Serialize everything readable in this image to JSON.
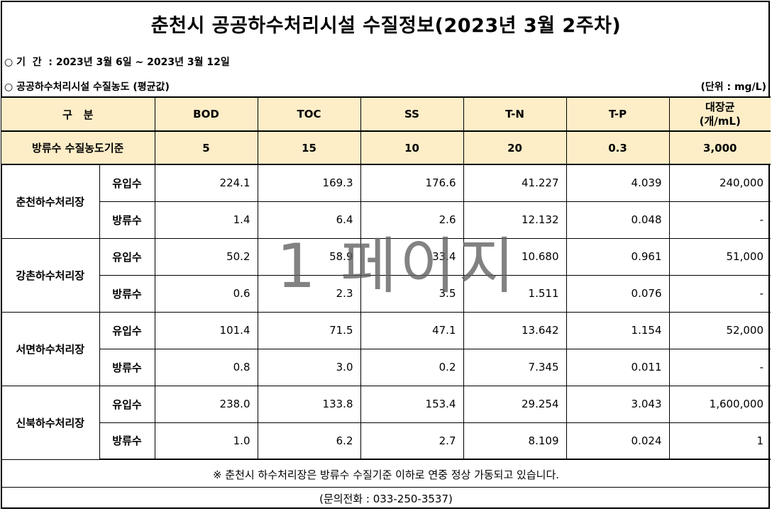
{
  "title": "춘천시 공공하수처리시설 수질정보(2023년 3월 2주차)",
  "period": {
    "bullet": "○",
    "label": "기  간  :",
    "value": "2023년 3월 6일 ~ 2023년 3월 12일"
  },
  "section": {
    "bullet": "○",
    "label": "공공하수처리시설 수질농도 (평균값)",
    "unit": "(단위 : mg/L)"
  },
  "table": {
    "header": {
      "division": "구   분",
      "columns": [
        "BOD",
        "TOC",
        "SS",
        "T-N",
        "T-P"
      ],
      "coliform_line1": "대장균",
      "coliform_line2": "(개/mL)"
    },
    "standard": {
      "label": "방류수 수질농도기준",
      "values": [
        "5",
        "15",
        "10",
        "20",
        "0.3",
        "3,000"
      ]
    },
    "plants": [
      {
        "name": "춘천하수처리장",
        "rows": [
          {
            "kind": "유입수",
            "values": [
              "224.1",
              "169.3",
              "176.6",
              "41.227",
              "4.039",
              "240,000"
            ]
          },
          {
            "kind": "방류수",
            "values": [
              "1.4",
              "6.4",
              "2.6",
              "12.132",
              "0.048",
              "-"
            ]
          }
        ]
      },
      {
        "name": "강촌하수처리장",
        "rows": [
          {
            "kind": "유입수",
            "values": [
              "50.2",
              "58.9",
              "33.4",
              "10.680",
              "0.961",
              "51,000"
            ]
          },
          {
            "kind": "방류수",
            "values": [
              "0.6",
              "2.3",
              "3.5",
              "1.511",
              "0.076",
              "-"
            ]
          }
        ]
      },
      {
        "name": "서면하수처리장",
        "rows": [
          {
            "kind": "유입수",
            "values": [
              "101.4",
              "71.5",
              "47.1",
              "13.642",
              "1.154",
              "52,000"
            ]
          },
          {
            "kind": "방류수",
            "values": [
              "0.8",
              "3.0",
              "0.2",
              "7.345",
              "0.011",
              "-"
            ]
          }
        ]
      },
      {
        "name": "신북하수처리장",
        "rows": [
          {
            "kind": "유입수",
            "values": [
              "238.0",
              "133.8",
              "153.4",
              "29.254",
              "3.043",
              "1,600,000"
            ]
          },
          {
            "kind": "방류수",
            "values": [
              "1.0",
              "6.2",
              "2.7",
              "8.109",
              "0.024",
              "1"
            ]
          }
        ]
      }
    ]
  },
  "note": "※ 춘천시 하수처리장은 방류수 수질기준 이하로 연중 정상 가동되고 있습니다.",
  "contact": "(문의전화 : 033-250-3537)",
  "watermark": "1 페이지"
}
